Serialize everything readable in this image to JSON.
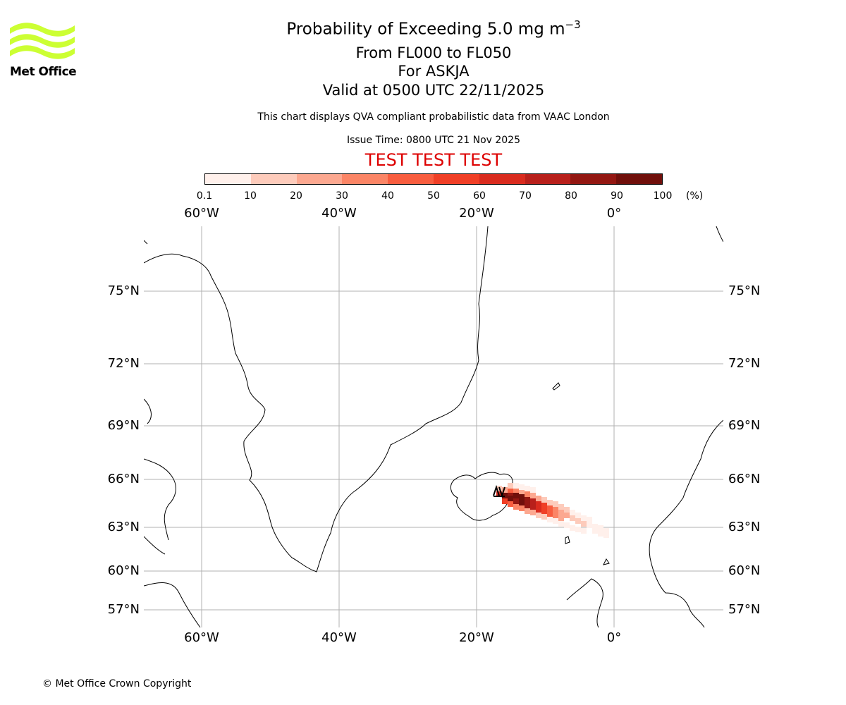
{
  "header": {
    "title_main": "Probability of Exceeding 5.0 mg m",
    "title_exponent": "−3",
    "title_levels": "From FL000 to FL050",
    "title_volcano": "For ASKJA",
    "title_valid": "Valid at 0500 UTC 22/11/2025",
    "description": "This chart displays QVA compliant probabilistic data from VAAC London",
    "issue_time": "Issue Time: 0800 UTC 21 Nov 2025",
    "test_banner": "TEST TEST TEST"
  },
  "logo": {
    "text": "Met Office",
    "color": "#ccff33"
  },
  "colorbar": {
    "ticks": [
      "0.1",
      "10",
      "20",
      "30",
      "40",
      "50",
      "60",
      "70",
      "80",
      "90",
      "100"
    ],
    "unit": "(%)",
    "colors": [
      "#fff0eb",
      "#fdcbbb",
      "#fca890",
      "#fb8566",
      "#f85d3f",
      "#f03f26",
      "#d92b1e",
      "#b8201b",
      "#931712",
      "#700f0b"
    ]
  },
  "map": {
    "lon_labels": [
      "60°W",
      "40°W",
      "20°W",
      "0°"
    ],
    "lat_labels": [
      "75°N",
      "72°N",
      "69°N",
      "66°N",
      "63°N",
      "60°N",
      "57°N"
    ],
    "grid_color": "#b0b0b0"
  },
  "footer": {
    "copyright": "© Met Office Crown Copyright"
  }
}
